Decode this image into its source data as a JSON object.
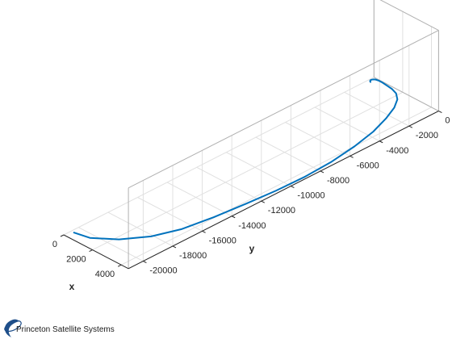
{
  "chart_data": {
    "type": "line",
    "projection": "3d",
    "title": "",
    "xlabel": "x",
    "ylabel": "y",
    "zlabel": "",
    "grid": true,
    "xlim": [
      0,
      4500
    ],
    "ylim": [
      -21000,
      0
    ],
    "x_ticks": [
      0,
      2000,
      4000
    ],
    "y_ticks": [
      0,
      -2000,
      -4000,
      -6000,
      -8000,
      -10000,
      -12000,
      -14000,
      -16000,
      -18000,
      -20000
    ],
    "series": [
      {
        "color": "#0072BD",
        "x": [
          200,
          1100,
          2200,
          3100,
          3650,
          3950,
          4150,
          4300,
          4350,
          4250,
          4000,
          3650,
          3200,
          2750,
          2300,
          1850,
          1400,
          1000,
          650,
          380,
          200,
          130,
          90,
          80,
          120,
          200
        ],
        "y": [
          -20500,
          -20300,
          -19400,
          -18100,
          -16600,
          -14700,
          -12700,
          -10800,
          -8900,
          -7000,
          -5200,
          -3600,
          -2300,
          -1300,
          -650,
          -300,
          -150,
          -100,
          -60,
          -60,
          -100,
          -160,
          -230,
          -300,
          -380,
          -430
        ]
      }
    ]
  },
  "brand": {
    "name": "Princeton Satellite Systems",
    "logo_color": "#1f4f8a"
  }
}
